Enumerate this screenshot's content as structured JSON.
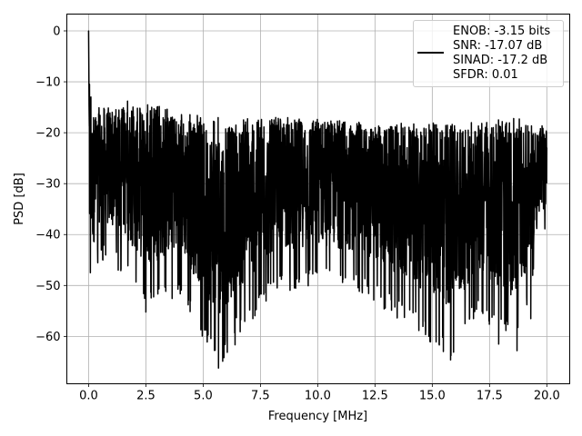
{
  "chart_data": {
    "type": "line",
    "title": "",
    "xlabel": "Frequency [MHz]",
    "ylabel": "PSD [dB]",
    "xlim": [
      -0.95,
      21.0
    ],
    "ylim": [
      -69.3,
      3.3
    ],
    "xticks": [
      0.0,
      2.5,
      5.0,
      7.5,
      10.0,
      12.5,
      15.0,
      17.5,
      20.0
    ],
    "xtick_labels": [
      "0.0",
      "2.5",
      "5.0",
      "7.5",
      "10.0",
      "12.5",
      "15.0",
      "17.5",
      "20.0"
    ],
    "yticks": [
      0,
      -10,
      -20,
      -30,
      -40,
      -50,
      -60
    ],
    "ytick_labels": [
      "0",
      "−10",
      "−20",
      "−30",
      "−40",
      "−50",
      "−60"
    ],
    "grid": true,
    "legend": {
      "placement": "top-right",
      "entries": [
        "ENOB: -3.15 bits",
        "SNR: -17.07 dB",
        "SINAD: -17.2 dB",
        "SFDR: 0.01"
      ]
    },
    "series": [
      {
        "color": "#000000",
        "description_points": {
          "x": [
            0.0,
            0.02,
            0.05,
            0.1,
            0.15,
            0.2,
            0.3,
            0.5,
            1.0,
            1.5,
            2.5,
            4.0,
            5.67,
            8.0,
            10.0,
            12.0,
            14.9,
            15.8,
            17.0,
            18.7,
            20.0
          ],
          "top": [
            0.0,
            -10,
            -12,
            -18,
            -17,
            -15,
            -16,
            -15,
            -15,
            -15,
            -14,
            -16,
            -17,
            -17,
            -17,
            -18,
            -18,
            -18,
            -18,
            -17,
            -20
          ],
          "bottom": [
            -23,
            -45,
            -51,
            -48,
            -50,
            -51,
            -48,
            -45,
            -47,
            -48,
            -55,
            -52,
            -66,
            -52,
            -50,
            -52,
            -61,
            -64.5,
            -56,
            -62.5,
            -40
          ]
        },
        "deep_dips": [
          {
            "x": 2.5,
            "y": -55.2
          },
          {
            "x": 5.67,
            "y": -66.2
          },
          {
            "x": 6.45,
            "y": -56.3
          },
          {
            "x": 7.17,
            "y": -56.5
          },
          {
            "x": 14.9,
            "y": -61.0
          },
          {
            "x": 15.3,
            "y": -61.5
          },
          {
            "x": 15.8,
            "y": -64.6
          },
          {
            "x": 16.8,
            "y": -56.5
          },
          {
            "x": 17.9,
            "y": -61.5
          },
          {
            "x": 18.7,
            "y": -62.8
          },
          {
            "x": 19.3,
            "y": -56.5
          }
        ],
        "high_peaks": [
          {
            "x": 0.0,
            "y": 0.0
          },
          {
            "x": 0.04,
            "y": -10.5
          },
          {
            "x": 0.1,
            "y": -13.0
          },
          {
            "x": 1.7,
            "y": -13.8
          }
        ]
      }
    ]
  }
}
